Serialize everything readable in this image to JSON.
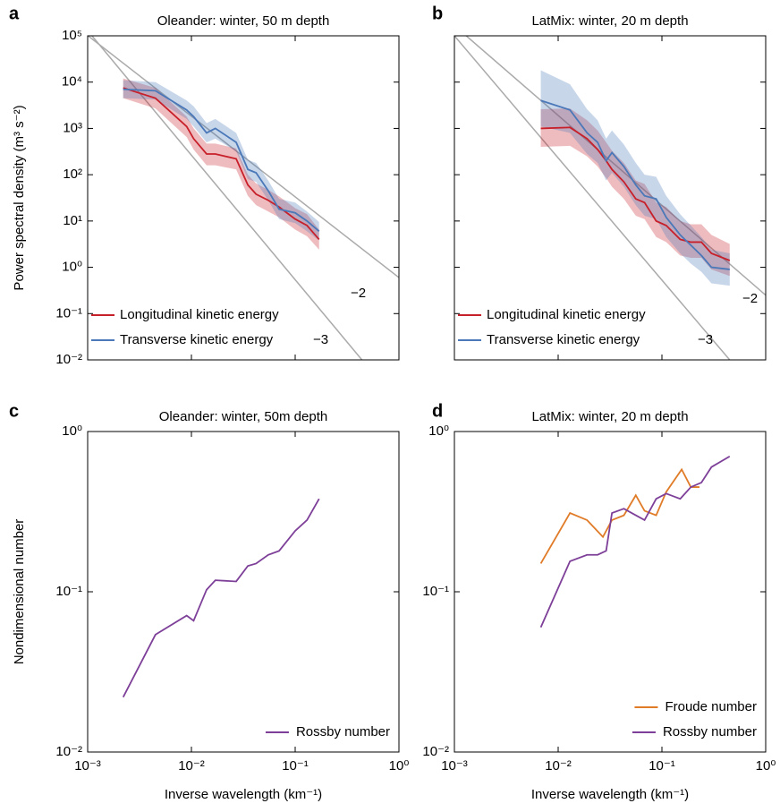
{
  "chart_data": [
    {
      "type": "line",
      "panel_label": "a",
      "title": "Oleander: winter, 50 m depth",
      "y_label": "Power spectral density (m³ s⁻²)",
      "xscale": "log",
      "yscale": "log",
      "xlim": [
        0.001,
        1
      ],
      "ylim": [
        0.01,
        100000
      ],
      "xticks": [
        0.001,
        0.01,
        0.1,
        1
      ],
      "yticks": [
        {
          "value": 0.01,
          "label": "10⁻²"
        },
        {
          "value": 0.1,
          "label": "10⁻¹"
        },
        {
          "value": 1,
          "label": "10⁰"
        },
        {
          "value": 10,
          "label": "10¹"
        },
        {
          "value": 100,
          "label": "10²"
        },
        {
          "value": 1000,
          "label": "10³"
        },
        {
          "value": 10000,
          "label": "10⁴"
        },
        {
          "value": 100000,
          "label": "10⁵"
        }
      ],
      "legend": "lower left",
      "series": [
        {
          "name": "Longitudinal kinetic energy",
          "color": "#c8202a",
          "x": [
            0.0022,
            0.0045,
            0.009,
            0.0105,
            0.014,
            0.017,
            0.027,
            0.035,
            0.042,
            0.055,
            0.07,
            0.1,
            0.13,
            0.17
          ],
          "values": [
            7500,
            4500,
            1100,
            600,
            280,
            280,
            220,
            60,
            38,
            28,
            20,
            11,
            8,
            4
          ],
          "lower": [
            4500,
            2700,
            650,
            350,
            160,
            160,
            130,
            35,
            22,
            16,
            12,
            6.5,
            4.7,
            2.4
          ],
          "upper": [
            12000,
            7500,
            1800,
            1000,
            470,
            470,
            370,
            100,
            65,
            47,
            34,
            19,
            14,
            6.5
          ]
        },
        {
          "name": "Transverse kinetic energy",
          "color": "#4a78b8",
          "x": [
            0.0022,
            0.0045,
            0.009,
            0.0105,
            0.014,
            0.017,
            0.027,
            0.035,
            0.042,
            0.055,
            0.07,
            0.1,
            0.13,
            0.17
          ],
          "values": [
            7000,
            6500,
            2500,
            1800,
            800,
            1000,
            500,
            130,
            110,
            45,
            18,
            15,
            10,
            6
          ],
          "lower": [
            4500,
            4200,
            1600,
            1100,
            500,
            600,
            320,
            80,
            70,
            28,
            11,
            9,
            6,
            3.8
          ],
          "upper": [
            11000,
            10000,
            4000,
            3000,
            1300,
            1600,
            800,
            210,
            180,
            75,
            30,
            25,
            16,
            9.5
          ]
        }
      ],
      "reference_lines": [
        {
          "label": "−2",
          "x": [
            0.0008,
            1
          ],
          "values": [
            150000,
            0.6
          ]
        },
        {
          "label": "−3",
          "x": [
            0.0011,
            0.44
          ],
          "values": [
            100000,
            0.01
          ]
        }
      ]
    },
    {
      "type": "line",
      "panel_label": "b",
      "title": "LatMix: winter, 20 m depth",
      "xscale": "log",
      "yscale": "log",
      "xlim": [
        0.001,
        1
      ],
      "ylim": [
        0.01,
        100000
      ],
      "xticks": [
        0.001,
        0.01,
        0.1,
        1
      ],
      "yticks": [
        0.01,
        0.1,
        1,
        10,
        100,
        1000,
        10000,
        100000
      ],
      "legend": "lower left",
      "series": [
        {
          "name": "Longitudinal kinetic energy",
          "color": "#c8202a",
          "x": [
            0.0068,
            0.013,
            0.019,
            0.024,
            0.029,
            0.033,
            0.043,
            0.056,
            0.068,
            0.088,
            0.11,
            0.15,
            0.19,
            0.24,
            0.3,
            0.45
          ],
          "values": [
            1000,
            1050,
            600,
            350,
            200,
            130,
            70,
            30,
            25,
            10,
            8,
            4,
            3.5,
            3.5,
            2,
            1.4
          ],
          "lower": [
            400,
            420,
            250,
            150,
            85,
            55,
            30,
            13,
            11,
            4.5,
            3.5,
            1.8,
            1.6,
            1.6,
            0.9,
            0.65
          ],
          "upper": [
            2600,
            2700,
            1500,
            900,
            500,
            330,
            180,
            75,
            63,
            25,
            20,
            10,
            8.5,
            8.5,
            5,
            3.2
          ]
        },
        {
          "name": "Transverse kinetic energy",
          "color": "#4a78b8",
          "x": [
            0.0068,
            0.013,
            0.019,
            0.024,
            0.029,
            0.033,
            0.043,
            0.056,
            0.068,
            0.088,
            0.11,
            0.15,
            0.19,
            0.24,
            0.3,
            0.45
          ],
          "values": [
            4000,
            2500,
            800,
            500,
            200,
            300,
            150,
            60,
            35,
            30,
            12,
            5,
            3,
            1.8,
            1,
            0.9
          ],
          "lower": [
            1100,
            800,
            280,
            180,
            75,
            110,
            55,
            22,
            13,
            11,
            4.5,
            2,
            1.2,
            0.8,
            0.45,
            0.4
          ],
          "upper": [
            18000,
            9000,
            2600,
            1500,
            600,
            900,
            450,
            180,
            100,
            90,
            35,
            14,
            8,
            4.5,
            2.4,
            2
          ]
        }
      ],
      "reference_lines": [
        {
          "label": "−2",
          "x": [
            0.0013,
            1
          ],
          "values": [
            100000,
            0.25
          ]
        },
        {
          "label": "−3",
          "x": [
            0.001,
            0.45
          ],
          "values": [
            100000,
            0.01
          ]
        }
      ]
    },
    {
      "type": "line",
      "panel_label": "c",
      "title": "Oleander: winter, 50m depth",
      "y_label": "Nondimensional number",
      "x_label": "Inverse wavelength (km⁻¹)",
      "xscale": "log",
      "yscale": "log",
      "xlim": [
        0.001,
        1
      ],
      "ylim": [
        0.01,
        1
      ],
      "xticks": [
        {
          "value": 0.001,
          "label": "10⁻³"
        },
        {
          "value": 0.01,
          "label": "10⁻²"
        },
        {
          "value": 0.1,
          "label": "10⁻¹"
        },
        {
          "value": 1,
          "label": "10⁰"
        }
      ],
      "yticks": [
        {
          "value": 0.01,
          "label": "10⁻²"
        },
        {
          "value": 0.1,
          "label": "10⁻¹"
        },
        {
          "value": 1,
          "label": "10⁰"
        }
      ],
      "legend": "lower right",
      "series": [
        {
          "name": "Rossby number",
          "color": "#7d3f98",
          "x": [
            0.0022,
            0.0045,
            0.009,
            0.0105,
            0.014,
            0.017,
            0.027,
            0.035,
            0.042,
            0.055,
            0.07,
            0.1,
            0.13,
            0.17
          ],
          "values": [
            0.022,
            0.054,
            0.071,
            0.066,
            0.103,
            0.118,
            0.116,
            0.145,
            0.15,
            0.17,
            0.18,
            0.24,
            0.28,
            0.38
          ]
        }
      ]
    },
    {
      "type": "line",
      "panel_label": "d",
      "title": "LatMix: winter, 20 m depth",
      "x_label": "Inverse wavelength (km⁻¹)",
      "xscale": "log",
      "yscale": "log",
      "xlim": [
        0.001,
        1
      ],
      "ylim": [
        0.01,
        1
      ],
      "xticks": [
        {
          "value": 0.001,
          "label": "10⁻³"
        },
        {
          "value": 0.01,
          "label": "10⁻²"
        },
        {
          "value": 0.1,
          "label": "10⁻¹"
        },
        {
          "value": 1,
          "label": "10⁰"
        }
      ],
      "yticks": [
        {
          "value": 0.01,
          "label": "10⁻²"
        },
        {
          "value": 0.1,
          "label": "10⁻¹"
        },
        {
          "value": 1,
          "label": "10⁰"
        }
      ],
      "legend": "lower right",
      "series": [
        {
          "name": "Froude number",
          "color": "#e07b28",
          "x": [
            0.0068,
            0.013,
            0.019,
            0.027,
            0.033,
            0.043,
            0.056,
            0.068,
            0.088,
            0.11,
            0.155,
            0.19,
            0.23
          ],
          "values": [
            0.15,
            0.31,
            0.28,
            0.22,
            0.28,
            0.3,
            0.4,
            0.32,
            0.3,
            0.42,
            0.58,
            0.45,
            0.45
          ]
        },
        {
          "name": "Rossby number",
          "color": "#7d3f98",
          "x": [
            0.0068,
            0.013,
            0.019,
            0.024,
            0.029,
            0.033,
            0.043,
            0.056,
            0.068,
            0.088,
            0.11,
            0.15,
            0.19,
            0.24,
            0.3,
            0.45
          ],
          "values": [
            0.06,
            0.155,
            0.17,
            0.17,
            0.18,
            0.31,
            0.33,
            0.3,
            0.28,
            0.38,
            0.41,
            0.38,
            0.45,
            0.48,
            0.6,
            0.7
          ]
        }
      ]
    }
  ]
}
